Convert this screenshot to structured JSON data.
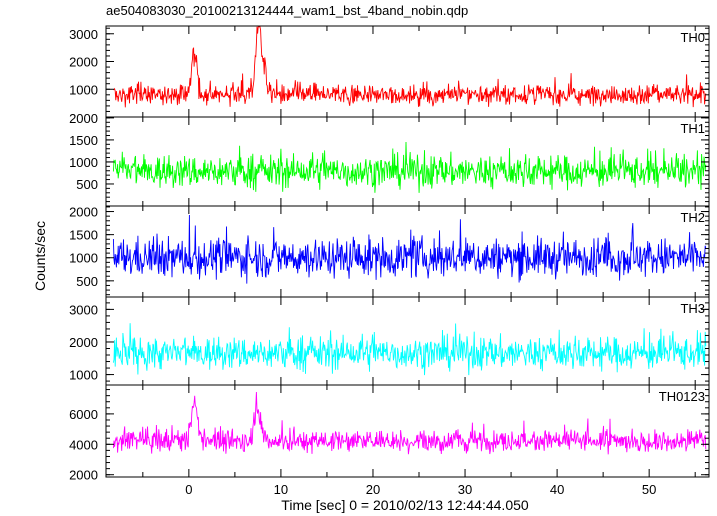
{
  "chart_data": {
    "type": "line",
    "title": "ae504083030_20100213124444_wam1_bst_4band_nobin.qdp",
    "xlabel": "Time [sec] 0 = 2010/02/13 12:44:44.050",
    "ylabel": "Counts/sec",
    "xlim": [
      -9,
      56.5
    ],
    "x_ticks": [
      0,
      10,
      20,
      30,
      40,
      50
    ],
    "x_tick_labels": [
      "0",
      "10",
      "20",
      "30",
      "40",
      "50"
    ],
    "data_x_range": [
      -8.2,
      56.2
    ],
    "panels": [
      {
        "name": "TH0",
        "color": "#ff0000",
        "ylim": [
          0,
          3280
        ],
        "yticks": [
          1000,
          2000,
          3000
        ],
        "ytick_labels": [
          "1000",
          "2000",
          "3000"
        ],
        "baseline": 800,
        "noise_amplitude": 320,
        "min": 350,
        "max": 3250,
        "features": [
          {
            "x": 0.6,
            "peak": 2700,
            "width": 0.4
          },
          {
            "x": 7.5,
            "peak": 3250,
            "width": 0.4
          },
          {
            "x": 8.0,
            "peak": 2400,
            "width": 0.5
          }
        ]
      },
      {
        "name": "TH1",
        "color": "#00ff00",
        "ylim": [
          0,
          2020
        ],
        "yticks": [
          500,
          1000,
          1500,
          2000
        ],
        "ytick_labels": [
          "500",
          "1000",
          "1500",
          "2000"
        ],
        "baseline": 780,
        "noise_amplitude": 330,
        "min": 300,
        "max": 1950,
        "features": []
      },
      {
        "name": "TH2",
        "color": "#0000ff",
        "ylim": [
          150,
          2120
        ],
        "yticks": [
          500,
          1000,
          1500,
          2000
        ],
        "ytick_labels": [
          "500",
          "1000",
          "1500",
          "2000"
        ],
        "baseline": 1000,
        "noise_amplitude": 380,
        "min": 300,
        "max": 2050,
        "features": []
      },
      {
        "name": "TH3",
        "color": "#00ffff",
        "ylim": [
          680,
          3380
        ],
        "yticks": [
          1000,
          2000,
          3000
        ],
        "ytick_labels": [
          "1000",
          "2000",
          "3000"
        ],
        "baseline": 1650,
        "noise_amplitude": 450,
        "min": 780,
        "max": 3200,
        "features": []
      },
      {
        "name": "TH0123",
        "color": "#ff00ff",
        "ylim": [
          1850,
          7900
        ],
        "yticks": [
          2000,
          4000,
          6000
        ],
        "ytick_labels": [
          "2000",
          "4000",
          "6000"
        ],
        "baseline": 4200,
        "noise_amplitude": 650,
        "min": 2500,
        "max": 7700,
        "features": [
          {
            "x": 0.6,
            "peak": 7200,
            "width": 0.5
          },
          {
            "x": 7.5,
            "peak": 7600,
            "width": 0.5
          }
        ]
      }
    ]
  }
}
